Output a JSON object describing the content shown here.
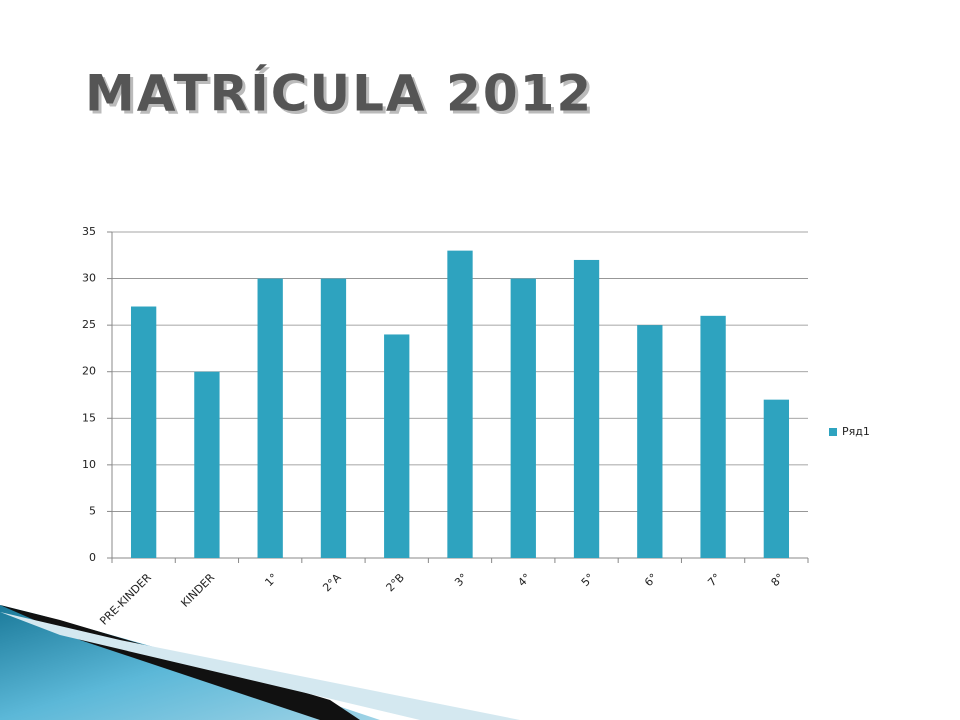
{
  "chart_data": {
    "type": "bar",
    "title": "MATRÍCULA 2012",
    "categories": [
      "PRE-KINDER",
      "KINDER",
      "1°",
      "2°A",
      "2°B",
      "3°",
      "4°",
      "5°",
      "6°",
      "7°",
      "8°"
    ],
    "series": [
      {
        "name": "Ряд1",
        "color": "#2ea3bf",
        "values": [
          27,
          20,
          30,
          30,
          24,
          33,
          30,
          32,
          25,
          26,
          17
        ]
      }
    ],
    "ylim": [
      0,
      35
    ],
    "yticks": [
      0,
      5,
      10,
      15,
      20,
      25,
      30,
      35
    ],
    "grid": true,
    "legend": "right"
  }
}
